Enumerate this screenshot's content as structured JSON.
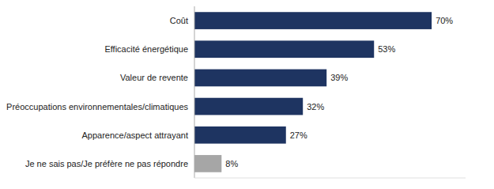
{
  "chart_data": {
    "type": "bar",
    "orientation": "horizontal",
    "categories": [
      "Je ne sais pas/Je préfère ne pas répondre",
      "Apparence/aspect attrayant",
      "Préoccupations environnementales/climatiques",
      "Valeur de revente",
      "Efficacité énergétique",
      "Coût"
    ],
    "values": [
      8,
      27,
      32,
      39,
      53,
      70
    ],
    "value_labels": [
      "8%",
      "27%",
      "32%",
      "39%",
      "53%",
      "70%"
    ],
    "colors": [
      "#a6a6a6",
      "#1e3461",
      "#1e3461",
      "#1e3461",
      "#1e3461",
      "#1e3461"
    ],
    "xlim": [
      0,
      80
    ],
    "data_labels": true,
    "tick_labels": "y",
    "grid": false
  }
}
